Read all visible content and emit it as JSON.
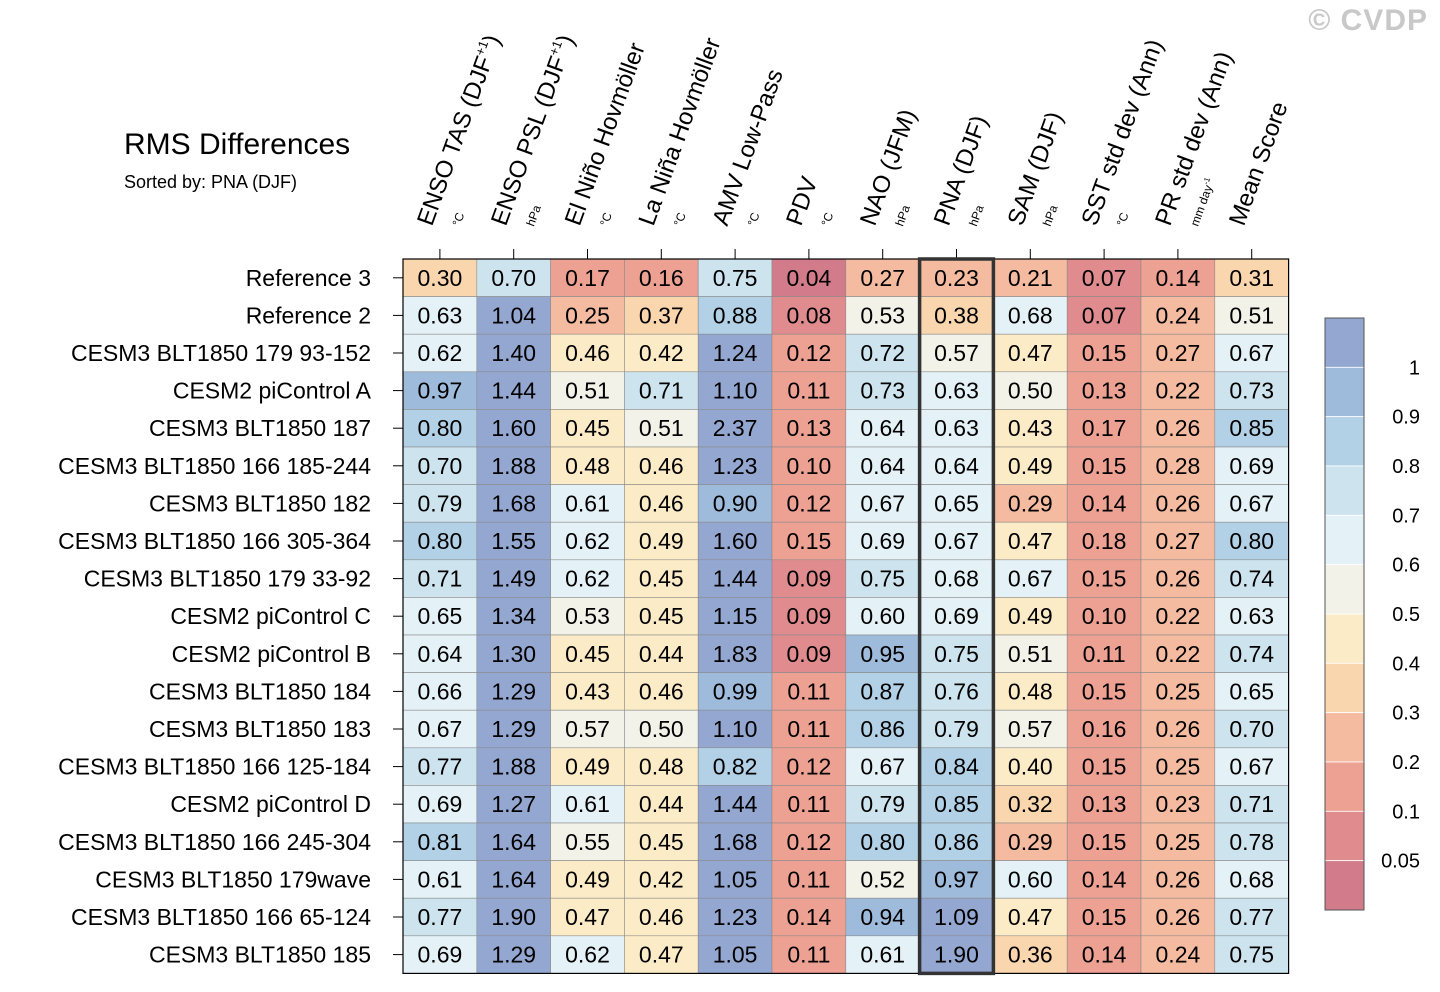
{
  "watermark": "© CVDP",
  "chart_data": {
    "type": "heatmap",
    "title": "RMS Differences",
    "subtitle": "Sorted by: PNA (DJF)",
    "highlighted_column": 7,
    "columns": [
      {
        "label": "ENSO TAS (DJF",
        "sup": "+1",
        "close": ")",
        "unit": "°C"
      },
      {
        "label": "ENSO PSL (DJF",
        "sup": "+1",
        "close": ")",
        "unit": "hPa"
      },
      {
        "label": "El Niño Hovmöller",
        "unit": "°C"
      },
      {
        "label": "La Niña Hovmöller",
        "unit": "°C"
      },
      {
        "label": "AMV Low-Pass",
        "unit": "°C"
      },
      {
        "label": "PDV",
        "unit": "°C"
      },
      {
        "label": "NAO (JFM)",
        "unit": "hPa"
      },
      {
        "label": "PNA (DJF)",
        "unit": "hPa"
      },
      {
        "label": "SAM (DJF)",
        "unit": "hPa"
      },
      {
        "label": "SST std dev (Ann)",
        "unit": "°C"
      },
      {
        "label": "PR std dev (Ann)",
        "unit": "mm day",
        "unit_sup": "-1"
      },
      {
        "label": "Mean Score",
        "unit": ""
      }
    ],
    "rows": [
      {
        "name": "Reference 3",
        "values": [
          "0.30",
          "0.70",
          "0.17",
          "0.16",
          "0.75",
          "0.04",
          "0.27",
          "0.23",
          "0.21",
          "0.07",
          "0.14",
          "0.31"
        ]
      },
      {
        "name": "Reference 2",
        "values": [
          "0.63",
          "1.04",
          "0.25",
          "0.37",
          "0.88",
          "0.08",
          "0.53",
          "0.38",
          "0.68",
          "0.07",
          "0.24",
          "0.51"
        ]
      },
      {
        "name": "CESM3 BLT1850 179 93-152",
        "values": [
          "0.62",
          "1.40",
          "0.46",
          "0.42",
          "1.24",
          "0.12",
          "0.72",
          "0.57",
          "0.47",
          "0.15",
          "0.27",
          "0.67"
        ]
      },
      {
        "name": "CESM2 piControl A",
        "values": [
          "0.97",
          "1.44",
          "0.51",
          "0.71",
          "1.10",
          "0.11",
          "0.73",
          "0.63",
          "0.50",
          "0.13",
          "0.22",
          "0.73"
        ]
      },
      {
        "name": "CESM3 BLT1850 187",
        "values": [
          "0.80",
          "1.60",
          "0.45",
          "0.51",
          "2.37",
          "0.13",
          "0.64",
          "0.63",
          "0.43",
          "0.17",
          "0.26",
          "0.85"
        ]
      },
      {
        "name": "CESM3 BLT1850 166 185-244",
        "values": [
          "0.70",
          "1.88",
          "0.48",
          "0.46",
          "1.23",
          "0.10",
          "0.64",
          "0.64",
          "0.49",
          "0.15",
          "0.28",
          "0.69"
        ]
      },
      {
        "name": "CESM3 BLT1850 182",
        "values": [
          "0.79",
          "1.68",
          "0.61",
          "0.46",
          "0.90",
          "0.12",
          "0.67",
          "0.65",
          "0.29",
          "0.14",
          "0.26",
          "0.67"
        ]
      },
      {
        "name": "CESM3 BLT1850 166 305-364",
        "values": [
          "0.80",
          "1.55",
          "0.62",
          "0.49",
          "1.60",
          "0.15",
          "0.69",
          "0.67",
          "0.47",
          "0.18",
          "0.27",
          "0.80"
        ]
      },
      {
        "name": "CESM3 BLT1850 179 33-92",
        "values": [
          "0.71",
          "1.49",
          "0.62",
          "0.45",
          "1.44",
          "0.09",
          "0.75",
          "0.68",
          "0.67",
          "0.15",
          "0.26",
          "0.74"
        ]
      },
      {
        "name": "CESM2 piControl C",
        "values": [
          "0.65",
          "1.34",
          "0.53",
          "0.45",
          "1.15",
          "0.09",
          "0.60",
          "0.69",
          "0.49",
          "0.10",
          "0.22",
          "0.63"
        ]
      },
      {
        "name": "CESM2 piControl B",
        "values": [
          "0.64",
          "1.30",
          "0.45",
          "0.44",
          "1.83",
          "0.09",
          "0.95",
          "0.75",
          "0.51",
          "0.11",
          "0.22",
          "0.74"
        ]
      },
      {
        "name": "CESM3 BLT1850 184",
        "values": [
          "0.66",
          "1.29",
          "0.43",
          "0.46",
          "0.99",
          "0.11",
          "0.87",
          "0.76",
          "0.48",
          "0.15",
          "0.25",
          "0.65"
        ]
      },
      {
        "name": "CESM3 BLT1850 183",
        "values": [
          "0.67",
          "1.29",
          "0.57",
          "0.50",
          "1.10",
          "0.11",
          "0.86",
          "0.79",
          "0.57",
          "0.16",
          "0.26",
          "0.70"
        ]
      },
      {
        "name": "CESM3 BLT1850 166 125-184",
        "values": [
          "0.77",
          "1.88",
          "0.49",
          "0.48",
          "0.82",
          "0.12",
          "0.67",
          "0.84",
          "0.40",
          "0.15",
          "0.25",
          "0.67"
        ]
      },
      {
        "name": "CESM2 piControl D",
        "values": [
          "0.69",
          "1.27",
          "0.61",
          "0.44",
          "1.44",
          "0.11",
          "0.79",
          "0.85",
          "0.32",
          "0.13",
          "0.23",
          "0.71"
        ]
      },
      {
        "name": "CESM3 BLT1850 166 245-304",
        "values": [
          "0.81",
          "1.64",
          "0.55",
          "0.45",
          "1.68",
          "0.12",
          "0.80",
          "0.86",
          "0.29",
          "0.15",
          "0.25",
          "0.78"
        ]
      },
      {
        "name": "CESM3 BLT1850 179wave",
        "values": [
          "0.61",
          "1.64",
          "0.49",
          "0.42",
          "1.05",
          "0.11",
          "0.52",
          "0.97",
          "0.60",
          "0.14",
          "0.26",
          "0.68"
        ]
      },
      {
        "name": "CESM3 BLT1850 166 65-124",
        "values": [
          "0.77",
          "1.90",
          "0.47",
          "0.46",
          "1.23",
          "0.14",
          "0.94",
          "1.09",
          "0.47",
          "0.15",
          "0.26",
          "0.77"
        ]
      },
      {
        "name": "CESM3 BLT1850 185",
        "values": [
          "0.69",
          "1.29",
          "0.62",
          "0.47",
          "1.05",
          "0.11",
          "0.61",
          "1.90",
          "0.36",
          "0.14",
          "0.24",
          "0.75"
        ]
      }
    ],
    "colorbar": {
      "bounds": [
        0.05,
        0.1,
        0.2,
        0.3,
        0.4,
        0.5,
        0.6,
        0.7,
        0.8,
        0.9,
        1
      ],
      "tick_labels": [
        "0.05",
        "0.1",
        "0.2",
        "0.3",
        "0.4",
        "0.5",
        "0.6",
        "0.7",
        "0.8",
        "0.9",
        "1"
      ],
      "colors": [
        "#d27b8a",
        "#e08c8e",
        "#eda193",
        "#f5bba0",
        "#fad6ae",
        "#fcebc7",
        "#f2f2e8",
        "#e4f1f7",
        "#cde4ef",
        "#b2d1e6",
        "#9fbbdc",
        "#94a7d1"
      ]
    }
  }
}
